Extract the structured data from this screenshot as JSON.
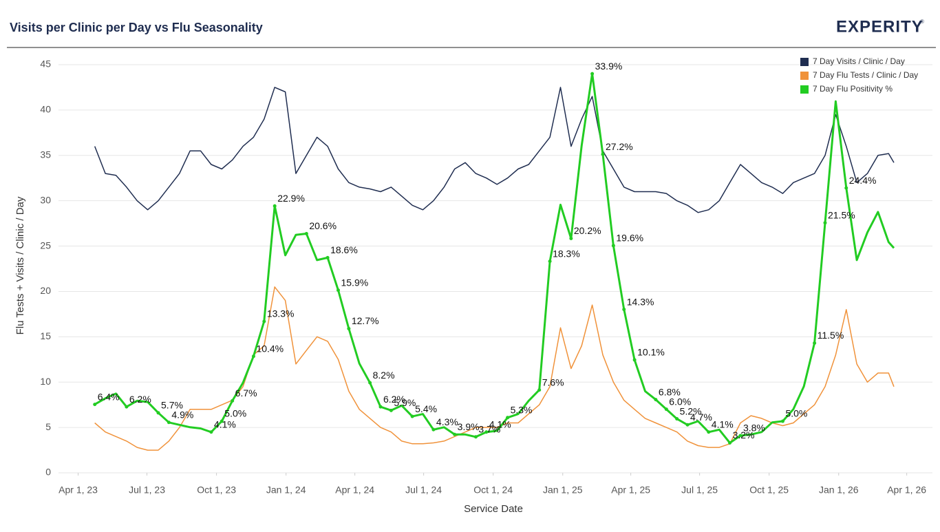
{
  "header": {
    "title": "Visits per Clinic per Day vs Flu Seasonality",
    "logo": "EXPERITY",
    "logo_mark": "®"
  },
  "chart_data": {
    "type": "line",
    "x_label": "Service Date",
    "y_label": "Flu Tests  +   Visits / Clinic / Day",
    "x": [
      "2023-04-23",
      "2023-05-07",
      "2023-05-21",
      "2023-06-04",
      "2023-06-18",
      "2023-07-02",
      "2023-07-16",
      "2023-07-30",
      "2023-08-13",
      "2023-08-27",
      "2023-09-10",
      "2023-09-24",
      "2023-10-08",
      "2023-10-22",
      "2023-11-05",
      "2023-11-19",
      "2023-12-03",
      "2023-12-17",
      "2023-12-31",
      "2024-01-14",
      "2024-01-28",
      "2024-02-11",
      "2024-02-25",
      "2024-03-10",
      "2024-03-24",
      "2024-04-07",
      "2024-04-21",
      "2024-05-05",
      "2024-05-19",
      "2024-06-02",
      "2024-06-16",
      "2024-06-30",
      "2024-07-14",
      "2024-07-28",
      "2024-08-11",
      "2024-08-25",
      "2024-09-08",
      "2024-09-22",
      "2024-10-06",
      "2024-10-20",
      "2024-11-03",
      "2024-11-17",
      "2024-12-01",
      "2024-12-15",
      "2024-12-29",
      "2025-01-12",
      "2025-01-26",
      "2025-02-09",
      "2025-02-23",
      "2025-03-09",
      "2025-03-23",
      "2025-04-06",
      "2025-04-20",
      "2025-05-04",
      "2025-05-18",
      "2025-06-01",
      "2025-06-15",
      "2025-06-29",
      "2025-07-13",
      "2025-07-27",
      "2025-08-10",
      "2025-08-24",
      "2025-09-07",
      "2025-09-21",
      "2025-10-05",
      "2025-10-19",
      "2025-11-02",
      "2025-11-16",
      "2025-11-30",
      "2025-12-14",
      "2025-12-28",
      "2026-01-11",
      "2026-01-25",
      "2026-02-08",
      "2026-02-22",
      "2026-03-08",
      "2026-03-15"
    ],
    "xlim": [
      "2023-03-06",
      "2026-05-05"
    ],
    "xticks": [
      {
        "value": "2023-04-01",
        "label": "Apr 1, 23"
      },
      {
        "value": "2023-07-01",
        "label": "Jul 1, 23"
      },
      {
        "value": "2023-10-01",
        "label": "Oct 1, 23"
      },
      {
        "value": "2024-01-01",
        "label": "Jan 1, 24"
      },
      {
        "value": "2024-04-01",
        "label": "Apr 1, 24"
      },
      {
        "value": "2024-07-01",
        "label": "Jul 1, 24"
      },
      {
        "value": "2024-10-01",
        "label": "Oct 1, 24"
      },
      {
        "value": "2025-01-01",
        "label": "Jan 1, 25"
      },
      {
        "value": "2025-04-01",
        "label": "Apr 1, 25"
      },
      {
        "value": "2025-07-01",
        "label": "Jul 1, 25"
      },
      {
        "value": "2025-10-01",
        "label": "Oct 1, 25"
      },
      {
        "value": "2026-01-01",
        "label": "Jan 1, 26"
      },
      {
        "value": "2026-04-01",
        "label": "Apr 1, 26"
      }
    ],
    "ylim": [
      0,
      45
    ],
    "yticks": [
      0,
      5,
      10,
      15,
      20,
      25,
      30,
      35,
      40,
      45
    ],
    "y2lim": [
      0.71,
      34.65
    ],
    "grid": true,
    "legend": "top-right",
    "series": [
      {
        "name": "7 Day Visits / Clinic / Day",
        "color": "#1f2d50",
        "values": [
          36,
          33,
          32.8,
          31.5,
          30,
          29,
          30,
          31.5,
          33,
          35.5,
          35.5,
          34,
          33.5,
          34.5,
          36,
          37,
          39,
          42.5,
          42,
          33,
          35,
          37,
          36,
          33.5,
          32,
          31.5,
          31.3,
          31,
          31.5,
          30.5,
          29.5,
          29,
          30,
          31.5,
          33.5,
          34.2,
          33,
          32.5,
          31.8,
          32.5,
          33.5,
          34,
          35.5,
          37,
          42.5,
          36,
          39,
          41.5,
          35.5,
          33.5,
          31.5,
          31,
          31,
          31,
          30.8,
          30,
          29.5,
          28.7,
          29,
          30,
          32,
          34,
          33,
          32,
          31.5,
          30.8,
          32,
          32.5,
          33,
          35,
          39.5,
          36,
          32,
          33,
          35,
          35.2,
          34.2
        ]
      },
      {
        "name": "7 Day Flu Tests / Clinic / Day",
        "color": "#f0923a",
        "values": [
          5.5,
          4.5,
          4,
          3.5,
          2.8,
          2.5,
          2.5,
          3.5,
          5,
          7,
          7,
          7,
          7.5,
          8,
          9.5,
          13,
          14,
          20.5,
          19,
          12,
          13.5,
          15,
          14.5,
          12.5,
          9,
          7,
          6,
          5,
          4.5,
          3.5,
          3.2,
          3.2,
          3.3,
          3.5,
          4,
          4.5,
          5,
          5,
          5,
          5.5,
          5.5,
          6.5,
          7.5,
          9.5,
          16,
          11.5,
          14,
          18.5,
          13,
          10,
          8,
          7,
          6,
          5.5,
          5,
          4.5,
          3.5,
          3,
          2.8,
          2.8,
          3.2,
          5.5,
          6.3,
          6,
          5.5,
          5.2,
          5.5,
          6.5,
          7.5,
          9.5,
          13,
          18,
          12,
          10,
          11,
          11,
          9.5
        ]
      },
      {
        "name": "7 Day Flu Positivity %",
        "color": "#22cc22",
        "axis": "y2",
        "values": [
          6.4,
          6.9,
          7.3,
          6.2,
          6.7,
          6.6,
          5.7,
          4.9,
          4.7,
          4.5,
          4.4,
          4.1,
          5.0,
          6.7,
          8.2,
          10.4,
          13.3,
          22.9,
          18.8,
          20.5,
          20.6,
          18.4,
          18.6,
          15.9,
          12.7,
          9.8,
          8.2,
          6.2,
          5.9,
          6.3,
          5.4,
          5.6,
          4.3,
          4.5,
          3.9,
          3.9,
          3.7,
          4.1,
          4.2,
          5.3,
          5.6,
          6.7,
          7.6,
          18.3,
          23.0,
          20.2,
          27.9,
          33.9,
          27.2,
          19.6,
          14.3,
          10.1,
          7.5,
          6.8,
          6.0,
          5.2,
          4.7,
          5.0,
          4.1,
          4.3,
          3.2,
          3.8,
          3.9,
          4.1,
          4.9,
          5.0,
          6.0,
          7.9,
          11.5,
          21.5,
          31.6,
          24.4,
          18.4,
          20.7,
          22.4,
          19.9,
          19.4
        ],
        "value_labels": [
          "6.4%",
          null,
          null,
          "6.2%",
          null,
          null,
          "5.7%",
          "4.9%",
          null,
          null,
          null,
          "4.1%",
          "5.0%",
          "6.7%",
          null,
          "10.4%",
          "13.3%",
          "22.9%",
          null,
          null,
          "20.6%",
          null,
          "18.6%",
          "15.9%",
          "12.7%",
          null,
          "8.2%",
          "6.2%",
          "5.9%",
          null,
          "5.4%",
          null,
          "4.3%",
          null,
          "3.9%",
          null,
          "3.7%",
          "4.1%",
          null,
          "5.3%",
          null,
          null,
          "7.6%",
          "18.3%",
          null,
          "20.2%",
          null,
          "33.9%",
          "27.2%",
          "19.6%",
          "14.3%",
          "10.1%",
          null,
          "6.8%",
          "6.0%",
          "5.2%",
          "4.7%",
          null,
          "4.1%",
          null,
          "3.2%",
          "3.8%",
          null,
          null,
          null,
          "5.0%",
          null,
          null,
          "11.5%",
          "21.5%",
          null,
          "24.4%",
          null,
          null,
          null,
          null,
          null
        ]
      }
    ]
  }
}
